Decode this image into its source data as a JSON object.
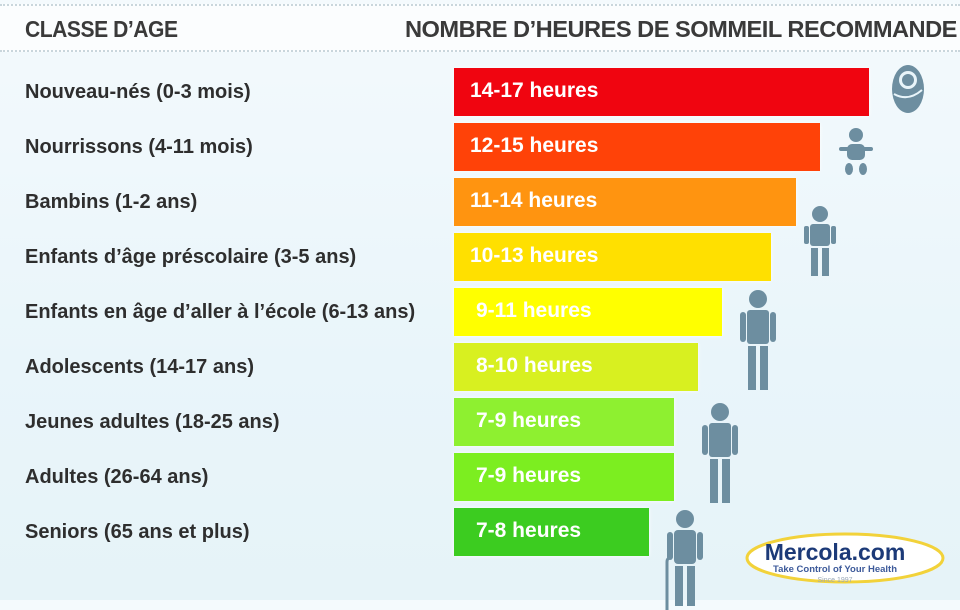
{
  "header": {
    "left_title": "CLASSE D’AGE",
    "right_title": "NOMBRE D’HEURES DE SOMMEIL RECOMMANDE"
  },
  "chart_data": {
    "type": "bar",
    "orientation": "horizontal",
    "categories": [
      "Nouveau-nés (0-3 mois)",
      "Nourrissons (4-11 mois)",
      "Bambins (1-2 ans)",
      "Enfants d’âge préscolaire (3-5 ans)",
      "Enfants en âge d’aller à l’école (6-13 ans)",
      "Adolescents (14-17 ans)",
      "Jeunes adultes (18-25 ans)",
      "Adultes (26-64 ans)",
      "Seniors (65 ans et plus)"
    ],
    "labels": [
      "14-17 heures",
      "12-15 heures",
      "11-14 heures",
      "10-13 heures",
      "9-11 heures",
      "8-10 heures",
      "7-9 heures",
      "7-9 heures",
      "7-8 heures"
    ],
    "min_hours": [
      14,
      12,
      11,
      10,
      9,
      8,
      7,
      7,
      7
    ],
    "max_hours": [
      17,
      15,
      14,
      13,
      11,
      10,
      9,
      9,
      8
    ],
    "colors": [
      "#f00510",
      "#ff4208",
      "#ff9410",
      "#ffe000",
      "#ffff00",
      "#d8f020",
      "#8ef030",
      "#7cee20",
      "#3ccc20"
    ],
    "icons": [
      "swaddled-baby-icon",
      "infant-icon",
      "toddler-icon",
      "preschooler-icon",
      "child-icon",
      "teen-icon",
      "young-adult-icon",
      "adult-icon",
      "senior-with-cane-icon"
    ],
    "icon_color": "#6d8ea0",
    "xlim": [
      0,
      17.5
    ],
    "grid": false
  },
  "logo": {
    "name": "Mercola.com",
    "tagline": "Take Control of Your Health",
    "since": "Since 1997"
  }
}
